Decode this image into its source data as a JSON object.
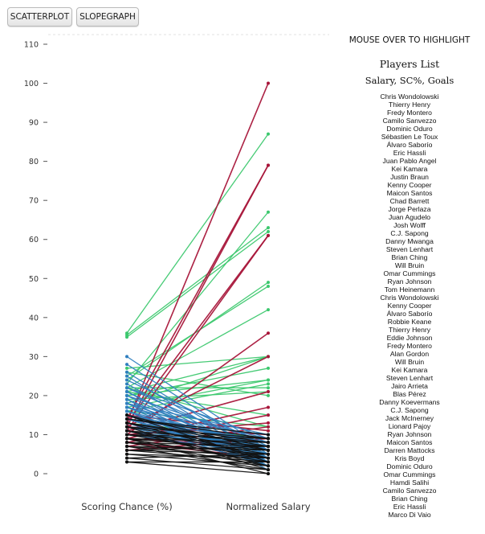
{
  "controls": {
    "scatter_label": "SCATTERPLOT",
    "slope_label": "SLOPEGRAPH",
    "hint": "MOUSE OVER TO HIGHLIGHT"
  },
  "sidebar": {
    "title": "Players List",
    "subtitle": "Salary, SC%, Goals",
    "players": [
      "Chris Wondolowski",
      "Thierry Henry",
      "Fredy Montero",
      "Camilo Sanvezzo",
      "Dominic Oduro",
      "Sébastien Le Toux",
      "Álvaro Saborío",
      "Eric Hassli",
      "Juan Pablo Angel",
      "Kei Kamara",
      "Justin Braun",
      "Kenny Cooper",
      "Maicon Santos",
      "Chad Barrett",
      "Jorge Perlaza",
      "Juan Agudelo",
      "Josh Wolff",
      "C.J. Sapong",
      "Danny Mwanga",
      "Steven Lenhart",
      "Brian Ching",
      "Will Bruin",
      "Omar Cummings",
      "Ryan Johnson",
      "Tom Heinemann",
      "Chris Wondolowski",
      "Kenny Cooper",
      "Álvaro Saborío",
      "Robbie Keane",
      "Thierry Henry",
      "Eddie Johnson",
      "Fredy Montero",
      "Alan Gordon",
      "Will Bruin",
      "Kei Kamara",
      "Steven Lenhart",
      "Jairo Arrieta",
      "Blas Pérez",
      "Danny Koevermans",
      "C.J. Sapong",
      "Jack McInerney",
      "Lionard Pajoy",
      "Ryan Johnson",
      "Maicon Santos",
      "Darren Mattocks",
      "Kris Boyd",
      "Dominic Oduro",
      "Omar Cummings",
      "Hamdi Salihi",
      "Camilo Sanvezzo",
      "Brian Ching",
      "Eric Hassli",
      "Marco Di Vaio"
    ]
  },
  "chart_data": {
    "type": "line",
    "ylim": [
      0,
      110
    ],
    "y_ticks": [
      0,
      10,
      20,
      30,
      40,
      50,
      60,
      70,
      80,
      90,
      100,
      110
    ],
    "x_categories": [
      "Scoring Chance (%)",
      "Normalized Salary"
    ],
    "colors": {
      "green": "#3cc86e",
      "red": "#a8163a",
      "blue": "#2f7fbf",
      "black": "#111111"
    },
    "series": {
      "green": [
        [
          36,
          87
        ],
        [
          35.5,
          63
        ],
        [
          35,
          62
        ],
        [
          23,
          67
        ],
        [
          24,
          49
        ],
        [
          25,
          48
        ],
        [
          22,
          42
        ],
        [
          21,
          30
        ],
        [
          20,
          27
        ],
        [
          20,
          24
        ],
        [
          22,
          22
        ],
        [
          18,
          30
        ],
        [
          17,
          24
        ],
        [
          16,
          23
        ],
        [
          15,
          11
        ],
        [
          14,
          10
        ],
        [
          13,
          9
        ],
        [
          12,
          7
        ],
        [
          19,
          21
        ],
        [
          21,
          15
        ],
        [
          27,
          30
        ],
        [
          26,
          20
        ],
        [
          22,
          12
        ],
        [
          16,
          12
        ]
      ],
      "red": [
        [
          13,
          100
        ],
        [
          14,
          79
        ],
        [
          12,
          79
        ],
        [
          11,
          61
        ],
        [
          13,
          61
        ],
        [
          10,
          36
        ],
        [
          12,
          30
        ],
        [
          11,
          21
        ],
        [
          9,
          17
        ],
        [
          8,
          15
        ],
        [
          10,
          13
        ],
        [
          7,
          12
        ],
        [
          12,
          10
        ],
        [
          14,
          8
        ],
        [
          6,
          9
        ],
        [
          9,
          7
        ],
        [
          8,
          4
        ],
        [
          11,
          3
        ],
        [
          15,
          11
        ],
        [
          13,
          6
        ]
      ],
      "blue": [
        [
          30,
          6
        ],
        [
          28,
          5
        ],
        [
          26,
          4
        ],
        [
          24,
          7
        ],
        [
          25,
          3
        ],
        [
          23,
          3
        ],
        [
          22,
          9
        ],
        [
          21,
          2
        ],
        [
          20,
          8
        ],
        [
          19,
          5
        ],
        [
          18,
          6
        ],
        [
          17,
          9
        ],
        [
          17,
          3
        ],
        [
          16,
          4
        ],
        [
          16,
          7
        ],
        [
          15,
          2
        ],
        [
          15,
          8
        ],
        [
          14,
          5
        ],
        [
          14,
          10
        ],
        [
          14,
          3
        ],
        [
          13,
          6
        ],
        [
          13,
          2
        ],
        [
          12,
          4
        ],
        [
          12,
          9
        ],
        [
          12,
          7
        ],
        [
          11,
          3
        ],
        [
          11,
          6
        ],
        [
          10,
          5
        ],
        [
          10,
          8
        ],
        [
          21,
          4
        ],
        [
          19,
          1
        ],
        [
          18,
          10
        ],
        [
          17,
          6
        ],
        [
          16,
          2
        ],
        [
          15,
          5
        ],
        [
          14,
          8
        ],
        [
          13,
          4
        ],
        [
          20,
          3
        ],
        [
          22,
          6
        ],
        [
          18,
          2
        ]
      ],
      "black": [
        [
          14,
          10
        ],
        [
          14,
          9
        ],
        [
          13,
          8
        ],
        [
          13,
          7
        ],
        [
          12,
          9
        ],
        [
          12,
          6
        ],
        [
          11,
          8
        ],
        [
          11,
          5
        ],
        [
          10,
          7
        ],
        [
          10,
          4
        ],
        [
          10,
          9
        ],
        [
          9,
          6
        ],
        [
          9,
          3
        ],
        [
          9,
          8
        ],
        [
          8,
          5
        ],
        [
          8,
          7
        ],
        [
          8,
          2
        ],
        [
          7,
          6
        ],
        [
          7,
          4
        ],
        [
          7,
          1
        ],
        [
          6,
          5
        ],
        [
          6,
          3
        ],
        [
          5,
          4
        ],
        [
          5,
          2
        ],
        [
          4,
          1
        ],
        [
          3,
          3
        ],
        [
          3,
          0
        ],
        [
          15,
          6
        ],
        [
          15,
          3
        ],
        [
          11,
          2
        ],
        [
          12,
          1
        ],
        [
          13,
          4
        ],
        [
          9,
          0
        ],
        [
          6,
          7
        ],
        [
          4,
          5
        ]
      ]
    }
  }
}
